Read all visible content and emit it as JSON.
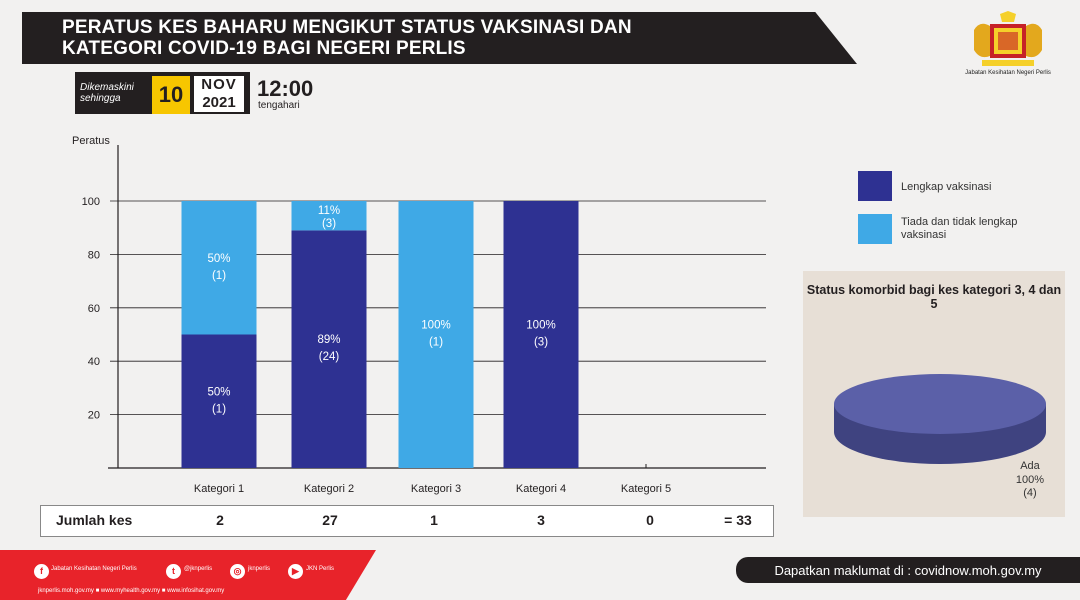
{
  "header": {
    "title_line1": "PERATUS KES BAHARU MENGIKUT STATUS VAKSINASI  DAN",
    "title_line2": "KATEGORI COVID-19 BAGI NEGERI PERLIS",
    "dept_label": "Jabatan Kesihatan Negeri Perlis",
    "crest_icon": "coat-of-arms-icon"
  },
  "updated": {
    "label": "Dikemaskini sehingga",
    "day": "10",
    "month": "NOV",
    "year": "2021",
    "time": "12:00",
    "time_sub": "tengahari"
  },
  "chart_data": {
    "type": "bar",
    "stacked": true,
    "ylabel": "Peratus",
    "ylim": [
      0,
      100
    ],
    "yticks": [
      "20",
      "40",
      "60",
      "80",
      "100"
    ],
    "categories": [
      "Kategori 1",
      "Kategori 2",
      "Kategori 3",
      "Kategori 4",
      "Kategori 5"
    ],
    "series": [
      {
        "name": "Lengkap vaksinasi",
        "color": "#2e3192",
        "values": [
          50,
          89,
          0,
          100,
          0
        ],
        "labels": [
          [
            "50%",
            "(1)"
          ],
          [
            "89%",
            "(24)"
          ],
          null,
          [
            "100%",
            "(3)"
          ],
          null
        ]
      },
      {
        "name": "Tiada dan tidak lengkap vaksinasi",
        "color": "#3fa9e6",
        "values": [
          50,
          11,
          100,
          0,
          0
        ],
        "labels": [
          [
            "50%",
            "(1)"
          ],
          [
            "11%",
            "(3)"
          ],
          [
            "100%",
            "(1)"
          ],
          null,
          null
        ]
      }
    ],
    "grid": true
  },
  "legend": {
    "item1": "Lengkap vaksinasi",
    "item2": "Tiada dan tidak lengkap vaksinasi"
  },
  "comorbid": {
    "title": "Status komorbid bagi kes kategori 3, 4 dan 5",
    "slice_name": "Ada",
    "slice_pct": "100%",
    "slice_count": "(4)",
    "color": "#5b60a8"
  },
  "totals": {
    "label": "Jumlah kes",
    "values": [
      "2",
      "27",
      "1",
      "3",
      "0"
    ],
    "sum": "= 33"
  },
  "footer": {
    "social_1": "Jabatan Kesihatan Negeri Perlis",
    "social_1_icon": "facebook-icon",
    "social_2": "@jknperlis",
    "social_2_icon": "twitter-icon",
    "social_3": "jknperlis",
    "social_3_icon": "instagram-icon",
    "social_4": "JKN Perlis",
    "social_4_icon": "youtube-icon",
    "links": "jknperlis.moh.gov.my ■ www.myhealth.gov.my ■ www.infosihat.gov.my",
    "source": "Dapatkan maklumat di : covidnow.moh.gov.my"
  }
}
